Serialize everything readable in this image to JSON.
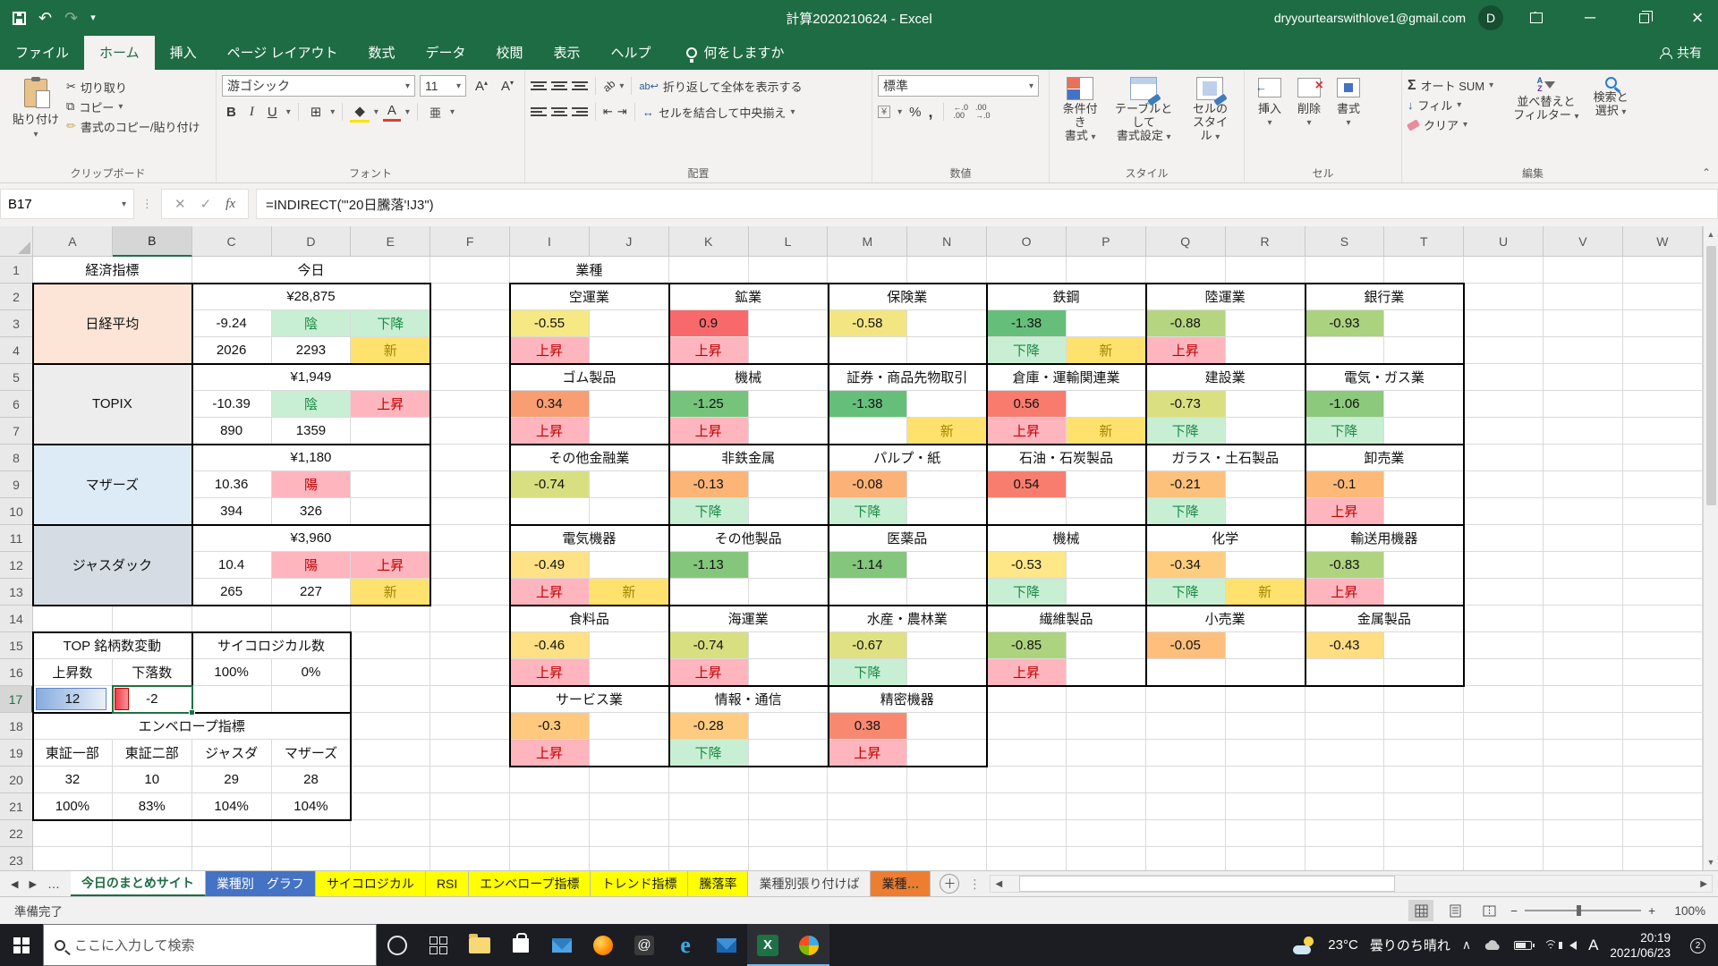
{
  "titlebar": {
    "title": "計算2020210624  -  Excel",
    "account": "dryyourtearswithlove1@gmail.com",
    "avatar": "D"
  },
  "tabs": {
    "items": [
      "ファイル",
      "ホーム",
      "挿入",
      "ページ レイアウト",
      "数式",
      "データ",
      "校閲",
      "表示",
      "ヘルプ"
    ],
    "active": "ホーム",
    "search": "何をしますか",
    "share": "共有"
  },
  "ribbon": {
    "clipboard": {
      "label": "クリップボード",
      "paste": "貼り付け",
      "cut": "切り取り",
      "copy": "コピー",
      "fmt": "書式のコピー/貼り付け"
    },
    "font": {
      "label": "フォント",
      "name": "游ゴシック",
      "size": "11",
      "phonetic": "亜"
    },
    "align": {
      "label": "配置",
      "wrap": "折り返して全体を表示する",
      "merge": "セルを結合して中央揃え"
    },
    "number": {
      "label": "数値",
      "format": "標準"
    },
    "styles": {
      "label": "スタイル",
      "cond1": "条件付き",
      "cond2": "書式",
      "tbl1": "テーブルとして",
      "tbl2": "書式設定",
      "cel1": "セルの",
      "cel2": "スタイル"
    },
    "cells": {
      "label": "セル",
      "insert": "挿入",
      "del": "削除",
      "format": "書式"
    },
    "editing": {
      "label": "編集",
      "autosum": "オート SUM",
      "fill": "フィル",
      "clear": "クリア",
      "sort1": "並べ替えと",
      "sort2": "フィルター",
      "find1": "検索と",
      "find2": "選択"
    }
  },
  "formula": {
    "name_box": "B17",
    "value": "=INDIRECT(\"'20日騰落'!J3\")"
  },
  "palette": {
    "up_bg": "#FFB5BE",
    "up_fg": "#C00000",
    "down_bg": "#C8EFD3",
    "down_fg": "#1A8A47",
    "new_bg": "#FFE26E",
    "new_fg": "#A18500",
    "selection": "#1E7145",
    "databar_pos_from": "#86ACDE",
    "databar_pos_to": "#EAF0F9",
    "databar_pos_border": "#5E87C8",
    "databar_neg_from": "#EE3B44",
    "databar_neg_to": "#F9949B",
    "databar_neg_border": "#C00000"
  },
  "grid": {
    "columns": [
      "A",
      "B",
      "C",
      "D",
      "E",
      "F",
      "I",
      "J",
      "K",
      "L",
      "M",
      "N",
      "O",
      "P",
      "Q",
      "R",
      "S",
      "T",
      "U",
      "V",
      "W"
    ],
    "selected_col": "B",
    "selected_row": 17,
    "rows": 23,
    "cells": [
      {
        "c": "A",
        "r": 1,
        "cs": 2,
        "t": "経済指標"
      },
      {
        "c": "C",
        "r": 1,
        "cs": 3,
        "t": "今日"
      },
      {
        "c": "A",
        "r": 2,
        "cs": 2,
        "rs": 3,
        "t": "日経平均",
        "bg": "#FCE4D6"
      },
      {
        "c": "C",
        "r": 2,
        "cs": 3,
        "t": "¥28,875"
      },
      {
        "c": "C",
        "r": 3,
        "t": "-9.24"
      },
      {
        "c": "D",
        "r": 3,
        "t": "陰",
        "k": "down"
      },
      {
        "c": "E",
        "r": 3,
        "t": "下降",
        "k": "down"
      },
      {
        "c": "C",
        "r": 4,
        "t": "2026"
      },
      {
        "c": "D",
        "r": 4,
        "t": "2293"
      },
      {
        "c": "E",
        "r": 4,
        "t": "新",
        "k": "new"
      },
      {
        "c": "A",
        "r": 5,
        "cs": 2,
        "rs": 3,
        "t": "TOPIX",
        "bg": "#EDEDED"
      },
      {
        "c": "C",
        "r": 5,
        "cs": 3,
        "t": "¥1,949"
      },
      {
        "c": "C",
        "r": 6,
        "t": "-10.39"
      },
      {
        "c": "D",
        "r": 6,
        "t": "陰",
        "k": "down"
      },
      {
        "c": "E",
        "r": 6,
        "t": "上昇",
        "k": "up"
      },
      {
        "c": "C",
        "r": 7,
        "t": "890"
      },
      {
        "c": "D",
        "r": 7,
        "t": "1359"
      },
      {
        "c": "A",
        "r": 8,
        "cs": 2,
        "rs": 3,
        "t": "マザーズ",
        "bg": "#DDEBF7"
      },
      {
        "c": "C",
        "r": 8,
        "cs": 3,
        "t": "¥1,180"
      },
      {
        "c": "C",
        "r": 9,
        "t": "10.36"
      },
      {
        "c": "D",
        "r": 9,
        "t": "陽",
        "k": "up"
      },
      {
        "c": "C",
        "r": 10,
        "t": "394"
      },
      {
        "c": "D",
        "r": 10,
        "t": "326"
      },
      {
        "c": "A",
        "r": 11,
        "cs": 2,
        "rs": 3,
        "t": "ジャスダック",
        "bg": "#D6DCE4"
      },
      {
        "c": "C",
        "r": 11,
        "cs": 3,
        "t": "¥3,960"
      },
      {
        "c": "C",
        "r": 12,
        "t": "10.4"
      },
      {
        "c": "D",
        "r": 12,
        "t": "陽",
        "k": "up"
      },
      {
        "c": "E",
        "r": 12,
        "t": "上昇",
        "k": "up"
      },
      {
        "c": "C",
        "r": 13,
        "t": "265"
      },
      {
        "c": "D",
        "r": 13,
        "t": "227"
      },
      {
        "c": "E",
        "r": 13,
        "t": "新",
        "k": "new"
      },
      {
        "c": "A",
        "r": 15,
        "cs": 2,
        "t": "TOP 銘柄数変動"
      },
      {
        "c": "C",
        "r": 15,
        "cs": 2,
        "t": "サイコロジカル数"
      },
      {
        "c": "A",
        "r": 16,
        "t": "上昇数"
      },
      {
        "c": "B",
        "r": 16,
        "t": "下落数"
      },
      {
        "c": "C",
        "r": 16,
        "t": "100%"
      },
      {
        "c": "D",
        "r": 16,
        "t": "0%"
      },
      {
        "c": "A",
        "r": 17,
        "t": "12",
        "bar": "pos"
      },
      {
        "c": "B",
        "r": 17,
        "t": "-2",
        "bar": "neg",
        "sel": true
      },
      {
        "c": "A",
        "r": 18,
        "cs": 4,
        "t": "エンベロープ指標"
      },
      {
        "c": "A",
        "r": 19,
        "t": "東証一部"
      },
      {
        "c": "B",
        "r": 19,
        "t": "東証二部"
      },
      {
        "c": "C",
        "r": 19,
        "t": "ジャスダ"
      },
      {
        "c": "D",
        "r": 19,
        "t": "マザーズ"
      },
      {
        "c": "A",
        "r": 20,
        "t": "32"
      },
      {
        "c": "B",
        "r": 20,
        "t": "10"
      },
      {
        "c": "C",
        "r": 20,
        "t": "29"
      },
      {
        "c": "D",
        "r": 20,
        "t": "28"
      },
      {
        "c": "A",
        "r": 21,
        "t": "100%"
      },
      {
        "c": "B",
        "r": 21,
        "t": "83%"
      },
      {
        "c": "C",
        "r": 21,
        "t": "104%"
      },
      {
        "c": "D",
        "r": 21,
        "t": "104%"
      }
    ]
  },
  "sectors": {
    "header": "業種",
    "col_pairs": [
      "I",
      "K",
      "M",
      "O",
      "Q",
      "S"
    ],
    "row_groups": [
      2,
      5,
      8,
      11,
      14,
      17
    ],
    "groups": [
      [
        {
          "n": "空運業",
          "v": "-0.55",
          "bg": "#F6E883",
          "s1": "上昇"
        },
        {
          "n": "鉱業",
          "v": "0.9",
          "bg": "#F8696B",
          "s1": "上昇"
        },
        {
          "n": "保険業",
          "v": "-0.58",
          "bg": "#F3E682"
        },
        {
          "n": "鉄鋼",
          "v": "-1.38",
          "bg": "#65BF7B",
          "s1": "下降",
          "s2": "新"
        },
        {
          "n": "陸運業",
          "v": "-0.88",
          "bg": "#B5D580",
          "s1": "上昇"
        },
        {
          "n": "銀行業",
          "v": "-0.93",
          "bg": "#ABD27F"
        }
      ],
      [
        {
          "n": "ゴム製品",
          "v": "0.34",
          "bg": "#F99D73",
          "s1": "上昇"
        },
        {
          "n": "機械",
          "v": "-1.25",
          "bg": "#76C37C",
          "s1": "上昇"
        },
        {
          "n": "証券・商品先物取引",
          "v": "-1.38",
          "bg": "#65BF7B",
          "s2": "新"
        },
        {
          "n": "倉庫・運輸関連業",
          "v": "0.56",
          "bg": "#F87B6E",
          "s1": "上昇",
          "s2": "新"
        },
        {
          "n": "建設業",
          "v": "-0.73",
          "bg": "#DAE081",
          "s1": "下降"
        },
        {
          "n": "電気・ガス業",
          "v": "-1.06",
          "bg": "#8CC97D",
          "s1": "下降"
        }
      ],
      [
        {
          "n": "その他金融業",
          "v": "-0.74",
          "bg": "#D8DF81"
        },
        {
          "n": "非鉄金属",
          "v": "-0.13",
          "bg": "#FCB477",
          "s1": "下降"
        },
        {
          "n": "パルプ・紙",
          "v": "-0.08",
          "bg": "#FCB176",
          "s1": "下降"
        },
        {
          "n": "石油・石炭製品",
          "v": "0.54",
          "bg": "#F87D6E"
        },
        {
          "n": "ガラス・土石製品",
          "v": "-0.21",
          "bg": "#FDC17C",
          "s1": "下降"
        },
        {
          "n": "卸売業",
          "v": "-0.1",
          "bg": "#FDB978",
          "s1": "上昇"
        }
      ],
      [
        {
          "n": "電気機器",
          "v": "-0.49",
          "bg": "#FFE285",
          "s1": "上昇",
          "s2": "新"
        },
        {
          "n": "その他製品",
          "v": "-1.13",
          "bg": "#84C77C"
        },
        {
          "n": "医薬品",
          "v": "-1.14",
          "bg": "#83C67C"
        },
        {
          "n": "機械",
          "v": "-0.53",
          "bg": "#FEE787",
          "s1": "下降"
        },
        {
          "n": "化学",
          "v": "-0.34",
          "bg": "#FECD80",
          "s1": "下降",
          "s2": "新"
        },
        {
          "n": "輸送用機器",
          "v": "-0.83",
          "bg": "#B0D37F",
          "s1": "上昇"
        }
      ],
      [
        {
          "n": "食料品",
          "v": "-0.46",
          "bg": "#FFE084",
          "s1": "上昇"
        },
        {
          "n": "海運業",
          "v": "-0.74",
          "bg": "#D8DF81",
          "s1": "上昇"
        },
        {
          "n": "水産・農林業",
          "v": "-0.67",
          "bg": "#DFE182",
          "s1": "下降"
        },
        {
          "n": "繊維製品",
          "v": "-0.85",
          "bg": "#AED37F",
          "s1": "上昇"
        },
        {
          "n": "小売業",
          "v": "-0.05",
          "bg": "#FDBF7B"
        },
        {
          "n": "金属製品",
          "v": "-0.43",
          "bg": "#FFDD83"
        }
      ],
      [
        {
          "n": "サービス業",
          "v": "-0.3",
          "bg": "#FEC97F",
          "s1": "上昇"
        },
        {
          "n": "情報・通信",
          "v": "-0.28",
          "bg": "#FECB80",
          "s1": "下降"
        },
        {
          "n": "精密機器",
          "v": "0.38",
          "bg": "#F88970",
          "s1": "上昇"
        }
      ]
    ]
  },
  "sheet_tabs": {
    "tabs": [
      {
        "label": "今日のまとめサイト",
        "style": "active"
      },
      {
        "label": "業種別　グラフ",
        "bg": "#4472C4",
        "fg": "#FFFFFF"
      },
      {
        "label": "サイコロジカル",
        "bg": "#FFFF00",
        "fg": "#1F1F1F"
      },
      {
        "label": "RSI",
        "bg": "#FFFF00",
        "fg": "#1F1F1F"
      },
      {
        "label": "エンベロープ指標",
        "bg": "#FFFF00",
        "fg": "#1F1F1F"
      },
      {
        "label": "トレンド指標",
        "bg": "#FFFF00",
        "fg": "#1F1F1F"
      },
      {
        "label": "騰落率",
        "bg": "#FFFF00",
        "fg": "#1F1F1F"
      },
      {
        "label": "業種別張り付けば",
        "bg": "",
        "fg": "#444444"
      },
      {
        "label": "業種",
        "bg": "#ED7D31",
        "fg": "#1F1F1F",
        "suffix": "…"
      }
    ]
  },
  "status": {
    "ready": "準備完了",
    "zoom": "100%"
  },
  "taskbar": {
    "search": "ここに入力して検索",
    "temp": "23°C",
    "weather": "曇りのち晴れ",
    "ime": "A",
    "time": "20:19",
    "date": "2021/06/23",
    "badge": "2"
  }
}
